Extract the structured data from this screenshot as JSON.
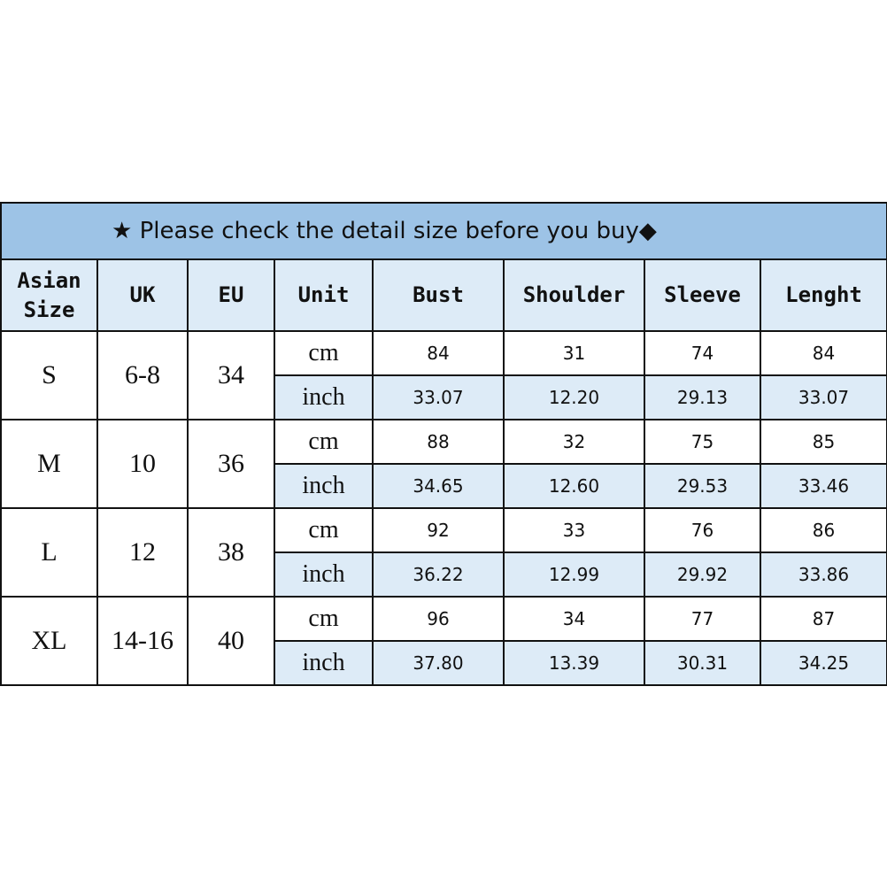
{
  "banner": {
    "text": "Please check the detail size before you buy",
    "star_icon": "★",
    "diamond_icon": "◆"
  },
  "headers": [
    "Asian Size",
    "UK",
    "EU",
    "Unit",
    "Bust",
    "Shoulder",
    "Sleeve",
    "Lenght"
  ],
  "rows": [
    {
      "asian": "S",
      "uk": "6-8",
      "eu": "34",
      "cm": [
        "84",
        "31",
        "74",
        "84"
      ],
      "inch": [
        "33.07",
        "12.20",
        "29.13",
        "33.07"
      ]
    },
    {
      "asian": "M",
      "uk": "10",
      "eu": "36",
      "cm": [
        "88",
        "32",
        "75",
        "85"
      ],
      "inch": [
        "34.65",
        "12.60",
        "29.53",
        "33.46"
      ]
    },
    {
      "asian": "L",
      "uk": "12",
      "eu": "38",
      "cm": [
        "92",
        "33",
        "76",
        "86"
      ],
      "inch": [
        "36.22",
        "12.99",
        "29.92",
        "33.86"
      ]
    },
    {
      "asian": "XL",
      "uk": "14-16",
      "eu": "40",
      "cm": [
        "96",
        "34",
        "77",
        "87"
      ],
      "inch": [
        "37.80",
        "13.39",
        "30.31",
        "34.25"
      ]
    }
  ],
  "units": {
    "cm": "cm",
    "inch": "inch"
  },
  "colors": {
    "banner": "#9dc3e6",
    "header": "#ddebf7"
  }
}
